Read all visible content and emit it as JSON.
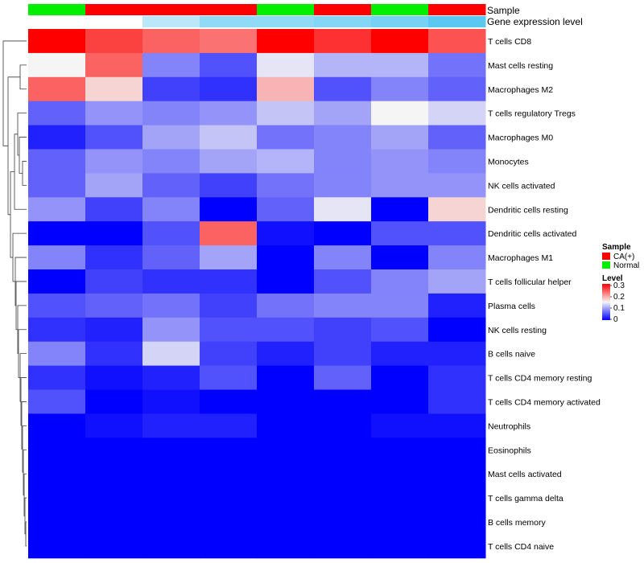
{
  "chart_data": {
    "type": "heatmap",
    "annotation_rows": [
      "Sample",
      "Gene expression level"
    ],
    "columns": [
      {
        "sample": "Normal",
        "expression": 0.0
      },
      {
        "sample": "CA(+)",
        "expression": 0.0
      },
      {
        "sample": "CA(+)",
        "expression": 0.05
      },
      {
        "sample": "CA(+)",
        "expression": 0.08
      },
      {
        "sample": "Normal",
        "expression": 0.08
      },
      {
        "sample": "CA(+)",
        "expression": 0.09
      },
      {
        "sample": "Normal",
        "expression": 0.1
      },
      {
        "sample": "CA(+)",
        "expression": 0.12
      }
    ],
    "rows": [
      "T cells CD8",
      "Mast cells resting",
      "Macrophages M2",
      "T cells regulatory  Tregs",
      "Macrophages M0",
      "Monocytes",
      "NK cells activated",
      "Dendritic cells resting",
      "Dendritic cells activated",
      "Macrophages M1",
      "T cells follicular helper",
      "Plasma cells",
      "NK cells resting",
      "B cells naive",
      "T cells CD4 memory resting",
      "T cells CD4 memory activated",
      "Neutrophils",
      "Eosinophils",
      "Mast cells activated",
      "T cells gamma delta",
      "B cells memory",
      "T cells CD4 naive"
    ],
    "values": [
      [
        0.3,
        0.26,
        0.24,
        0.23,
        0.3,
        0.27,
        0.3,
        0.25
      ],
      [
        0.15,
        0.24,
        0.08,
        0.05,
        0.14,
        0.11,
        0.11,
        0.07
      ],
      [
        0.24,
        0.17,
        0.04,
        0.03,
        0.19,
        0.05,
        0.08,
        0.06
      ],
      [
        0.06,
        0.09,
        0.08,
        0.09,
        0.12,
        0.1,
        0.15,
        0.13
      ],
      [
        0.02,
        0.05,
        0.1,
        0.12,
        0.07,
        0.08,
        0.1,
        0.06
      ],
      [
        0.06,
        0.09,
        0.08,
        0.1,
        0.11,
        0.08,
        0.09,
        0.08
      ],
      [
        0.06,
        0.1,
        0.06,
        0.04,
        0.07,
        0.08,
        0.09,
        0.09
      ],
      [
        0.09,
        0.04,
        0.08,
        0.0,
        0.06,
        0.14,
        0.0,
        0.17
      ],
      [
        0.0,
        0.0,
        0.05,
        0.24,
        0.01,
        0.0,
        0.05,
        0.05
      ],
      [
        0.08,
        0.03,
        0.06,
        0.1,
        0.0,
        0.08,
        0.0,
        0.08
      ],
      [
        0.0,
        0.04,
        0.03,
        0.03,
        0.0,
        0.05,
        0.08,
        0.1
      ],
      [
        0.05,
        0.06,
        0.07,
        0.04,
        0.07,
        0.08,
        0.08,
        0.02
      ],
      [
        0.03,
        0.02,
        0.09,
        0.05,
        0.05,
        0.04,
        0.05,
        0.0
      ],
      [
        0.08,
        0.03,
        0.13,
        0.04,
        0.02,
        0.04,
        0.02,
        0.02
      ],
      [
        0.03,
        0.01,
        0.02,
        0.05,
        0.0,
        0.06,
        0.0,
        0.03
      ],
      [
        0.05,
        0.0,
        0.01,
        0.0,
        0.0,
        0.0,
        0.0,
        0.03
      ],
      [
        0.0,
        0.01,
        0.02,
        0.02,
        0.0,
        0.0,
        0.01,
        0.01
      ],
      [
        0.0,
        0.0,
        0.0,
        0.0,
        0.0,
        0.0,
        0.0,
        0.0
      ],
      [
        0.0,
        0.0,
        0.0,
        0.0,
        0.0,
        0.0,
        0.0,
        0.0
      ],
      [
        0.0,
        0.0,
        0.0,
        0.0,
        0.0,
        0.0,
        0.0,
        0.0
      ],
      [
        0.0,
        0.0,
        0.0,
        0.0,
        0.0,
        0.0,
        0.0,
        0.0
      ],
      [
        0.0,
        0.0,
        0.0,
        0.0,
        0.0,
        0.0,
        0.0,
        0.0
      ]
    ],
    "color_scale": {
      "min": 0,
      "mid": 0.15,
      "max": 0.3,
      "low": "#0000ff",
      "mid_color": "#f5f5f5",
      "high": "#ff0000"
    },
    "sample_colors": {
      "CA(+)": "#ff0000",
      "Normal": "#00ee00"
    },
    "expression_colors": {
      "low": "#ffffff",
      "high": "#5ac8f0"
    },
    "legend": {
      "sample_title": "Sample",
      "sample_entries": [
        "CA(+)",
        "Normal"
      ],
      "level_title": "Level",
      "level_ticks": [
        "0.3",
        "0.2",
        "0.1",
        "0"
      ]
    },
    "row_dendrogram": true,
    "legend_position": "right"
  }
}
